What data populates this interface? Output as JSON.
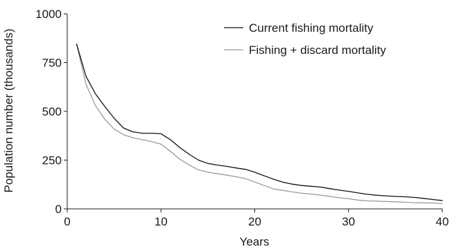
{
  "chart_data": {
    "type": "line",
    "title": "",
    "xlabel": "Years",
    "ylabel": "Population number (thousands)",
    "xlim": [
      0,
      40
    ],
    "ylim": [
      0,
      1000
    ],
    "xticks": [
      0,
      10,
      20,
      30,
      40
    ],
    "yticks": [
      0,
      250,
      500,
      750,
      1000
    ],
    "grid": false,
    "legend_position": "top-right",
    "series": [
      {
        "name": "Current fishing mortality",
        "color": "#111111",
        "x": [
          1,
          2,
          3,
          4,
          5,
          6,
          7,
          8,
          9,
          10,
          11,
          12,
          13,
          14,
          15,
          16,
          17,
          18,
          19,
          20,
          21,
          22,
          23,
          24,
          25,
          26,
          27,
          28,
          29,
          30,
          31,
          32,
          33,
          34,
          35,
          36,
          37,
          38,
          39,
          40
        ],
        "y": [
          845,
          680,
          590,
          525,
          465,
          415,
          395,
          388,
          388,
          385,
          355,
          315,
          280,
          250,
          233,
          225,
          218,
          210,
          203,
          188,
          170,
          152,
          137,
          127,
          120,
          116,
          112,
          104,
          96,
          90,
          82,
          75,
          70,
          67,
          64,
          62,
          59,
          54,
          48,
          43
        ]
      },
      {
        "name": "Fishing + discard mortality",
        "color": "#9a9a9a",
        "x": [
          1,
          2,
          3,
          4,
          5,
          6,
          7,
          8,
          9,
          10,
          11,
          12,
          13,
          14,
          15,
          16,
          17,
          18,
          19,
          20,
          21,
          22,
          23,
          24,
          25,
          26,
          27,
          28,
          29,
          30,
          31,
          32,
          33,
          34,
          35,
          36,
          37,
          38,
          39,
          40
        ],
        "y": [
          845,
          640,
          530,
          460,
          410,
          380,
          365,
          355,
          345,
          332,
          295,
          255,
          225,
          200,
          188,
          180,
          173,
          165,
          155,
          138,
          120,
          102,
          95,
          87,
          80,
          76,
          71,
          64,
          57,
          52,
          45,
          41,
          40,
          38,
          36,
          34,
          32,
          31,
          30,
          28
        ]
      }
    ]
  }
}
